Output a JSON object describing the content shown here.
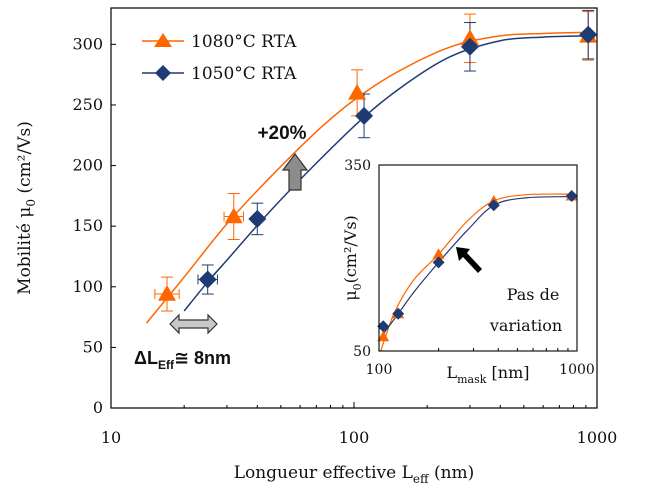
{
  "chart_data": [
    {
      "type": "line",
      "x_scale": "log",
      "xlim": [
        10,
        1000
      ],
      "ylim": [
        0,
        330
      ],
      "xticks": [
        "10",
        "100",
        "1000"
      ],
      "yticks": [
        "0",
        "50",
        "100",
        "150",
        "200",
        "250",
        "300"
      ],
      "xlabel": {
        "main": "Longueur effective L",
        "sub": "eff",
        "unit": " (nm)"
      },
      "ylabel": {
        "main": "Mobilité μ",
        "sub": "0",
        "unit": " (cm²/Vs)"
      },
      "legend": {
        "placement": "top-left"
      },
      "series": [
        {
          "name": "1080°C RTA",
          "color": "#ff6600",
          "marker": "triangle",
          "x": [
            17,
            32,
            103,
            300,
            920
          ],
          "y": [
            94,
            158,
            260,
            305,
            307
          ],
          "y_err": [
            14,
            19,
            19,
            20,
            20
          ],
          "x_err_log": [
            0.05,
            0.04,
            0,
            0,
            0
          ],
          "curve_x": [
            14,
            20,
            30,
            45,
            70,
            100,
            150,
            250,
            400,
            600,
            920
          ],
          "curve_y": [
            70,
            108,
            152,
            190,
            228,
            254,
            277,
            298,
            307,
            309,
            310
          ]
        },
        {
          "name": "1050°C RTA",
          "color": "#1f3b73",
          "marker": "diamond",
          "x": [
            25,
            40,
            110,
            300,
            920
          ],
          "y": [
            106,
            156,
            241,
            298,
            308
          ],
          "y_err": [
            12,
            13,
            18,
            20,
            20
          ],
          "x_err_log": [
            0.04,
            0,
            0,
            0,
            0
          ],
          "curve_x": [
            20,
            25,
            30,
            45,
            70,
            110,
            160,
            250,
            400,
            600,
            920
          ],
          "curve_y": [
            80,
            104,
            122,
            162,
            202,
            240,
            266,
            290,
            303,
            306,
            307
          ]
        }
      ],
      "annotations": {
        "percent": "+20%",
        "delta_main": "ΔL",
        "delta_sub": "Eff",
        "delta_value": "≅ 8nm"
      }
    },
    {
      "type": "line",
      "inset": true,
      "x_scale": "log",
      "xlim": [
        100,
        1000
      ],
      "ylim": [
        50,
        350
      ],
      "xticks": [
        "100",
        "1000"
      ],
      "yticks": [
        "50",
        "350"
      ],
      "xlabel": {
        "main": "L",
        "sub": "mask",
        "unit": " [nm]"
      },
      "ylabel": {
        "main": "μ",
        "sub": "0",
        "unit": "(cm²/Vs)"
      },
      "series": [
        {
          "name": "1080°C RTA",
          "color": "#ff6600",
          "marker": "triangle",
          "x": [
            105,
            125,
            200,
            380,
            940
          ],
          "y": [
            73,
            110,
            206,
            292,
            300
          ],
          "curve_x": [
            102,
            120,
            150,
            200,
            280,
            380,
            550,
            940
          ],
          "curve_y": [
            50,
            113,
            165,
            206,
            260,
            292,
            302,
            303
          ]
        },
        {
          "name": "1050°C RTA",
          "color": "#1f3b73",
          "marker": "diamond",
          "x": [
            105,
            125,
            200,
            380,
            940
          ],
          "y": [
            90,
            110,
            193,
            285,
            300
          ],
          "curve_x": [
            102,
            125,
            150,
            200,
            280,
            380,
            550,
            940
          ],
          "curve_y": [
            72,
            110,
            145,
            193,
            245,
            285,
            297,
            299
          ]
        }
      ],
      "note": [
        "Pas de",
        "variation"
      ]
    }
  ]
}
